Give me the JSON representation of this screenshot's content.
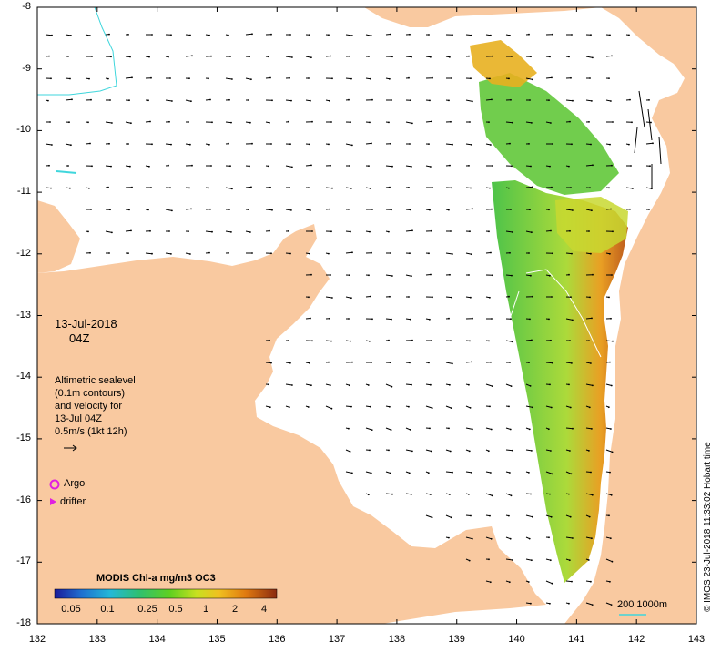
{
  "map": {
    "date": "13-Jul-2018",
    "hour": "04Z",
    "legend_lines": [
      "Altimetric sealevel",
      "(0.1m contours)",
      "and velocity for",
      "13-Jul 04Z",
      "0.5m/s (1kt 12h)"
    ],
    "argo_label": "Argo",
    "drifter_label": "drifter",
    "colorbar_title": "MODIS Chl-a mg/m3 OC3",
    "colorbar_ticks": [
      "0.05",
      "0.1",
      "0.25",
      "0.5",
      "1",
      "2",
      "4"
    ],
    "scale_label": "200  1000m",
    "credit": "© IMOS 23-Jul-2018 11:33:02 Hobart time",
    "lat_ticks": [
      "-8",
      "-9",
      "-10",
      "-11",
      "-12",
      "-13",
      "-14",
      "-15",
      "-16",
      "-17",
      "-18"
    ],
    "lon_ticks": [
      "132",
      "133",
      "134",
      "135",
      "136",
      "137",
      "138",
      "139",
      "140",
      "141",
      "142",
      "143"
    ],
    "colors": {
      "land": "#f9c9a0",
      "ocean": "#ffffff",
      "contour_200m": "#3fd6dc",
      "argo": "#e020e0",
      "chl_low": "#2030a0",
      "chl_mid": "#40c040",
      "chl_high": "#c05010"
    }
  }
}
